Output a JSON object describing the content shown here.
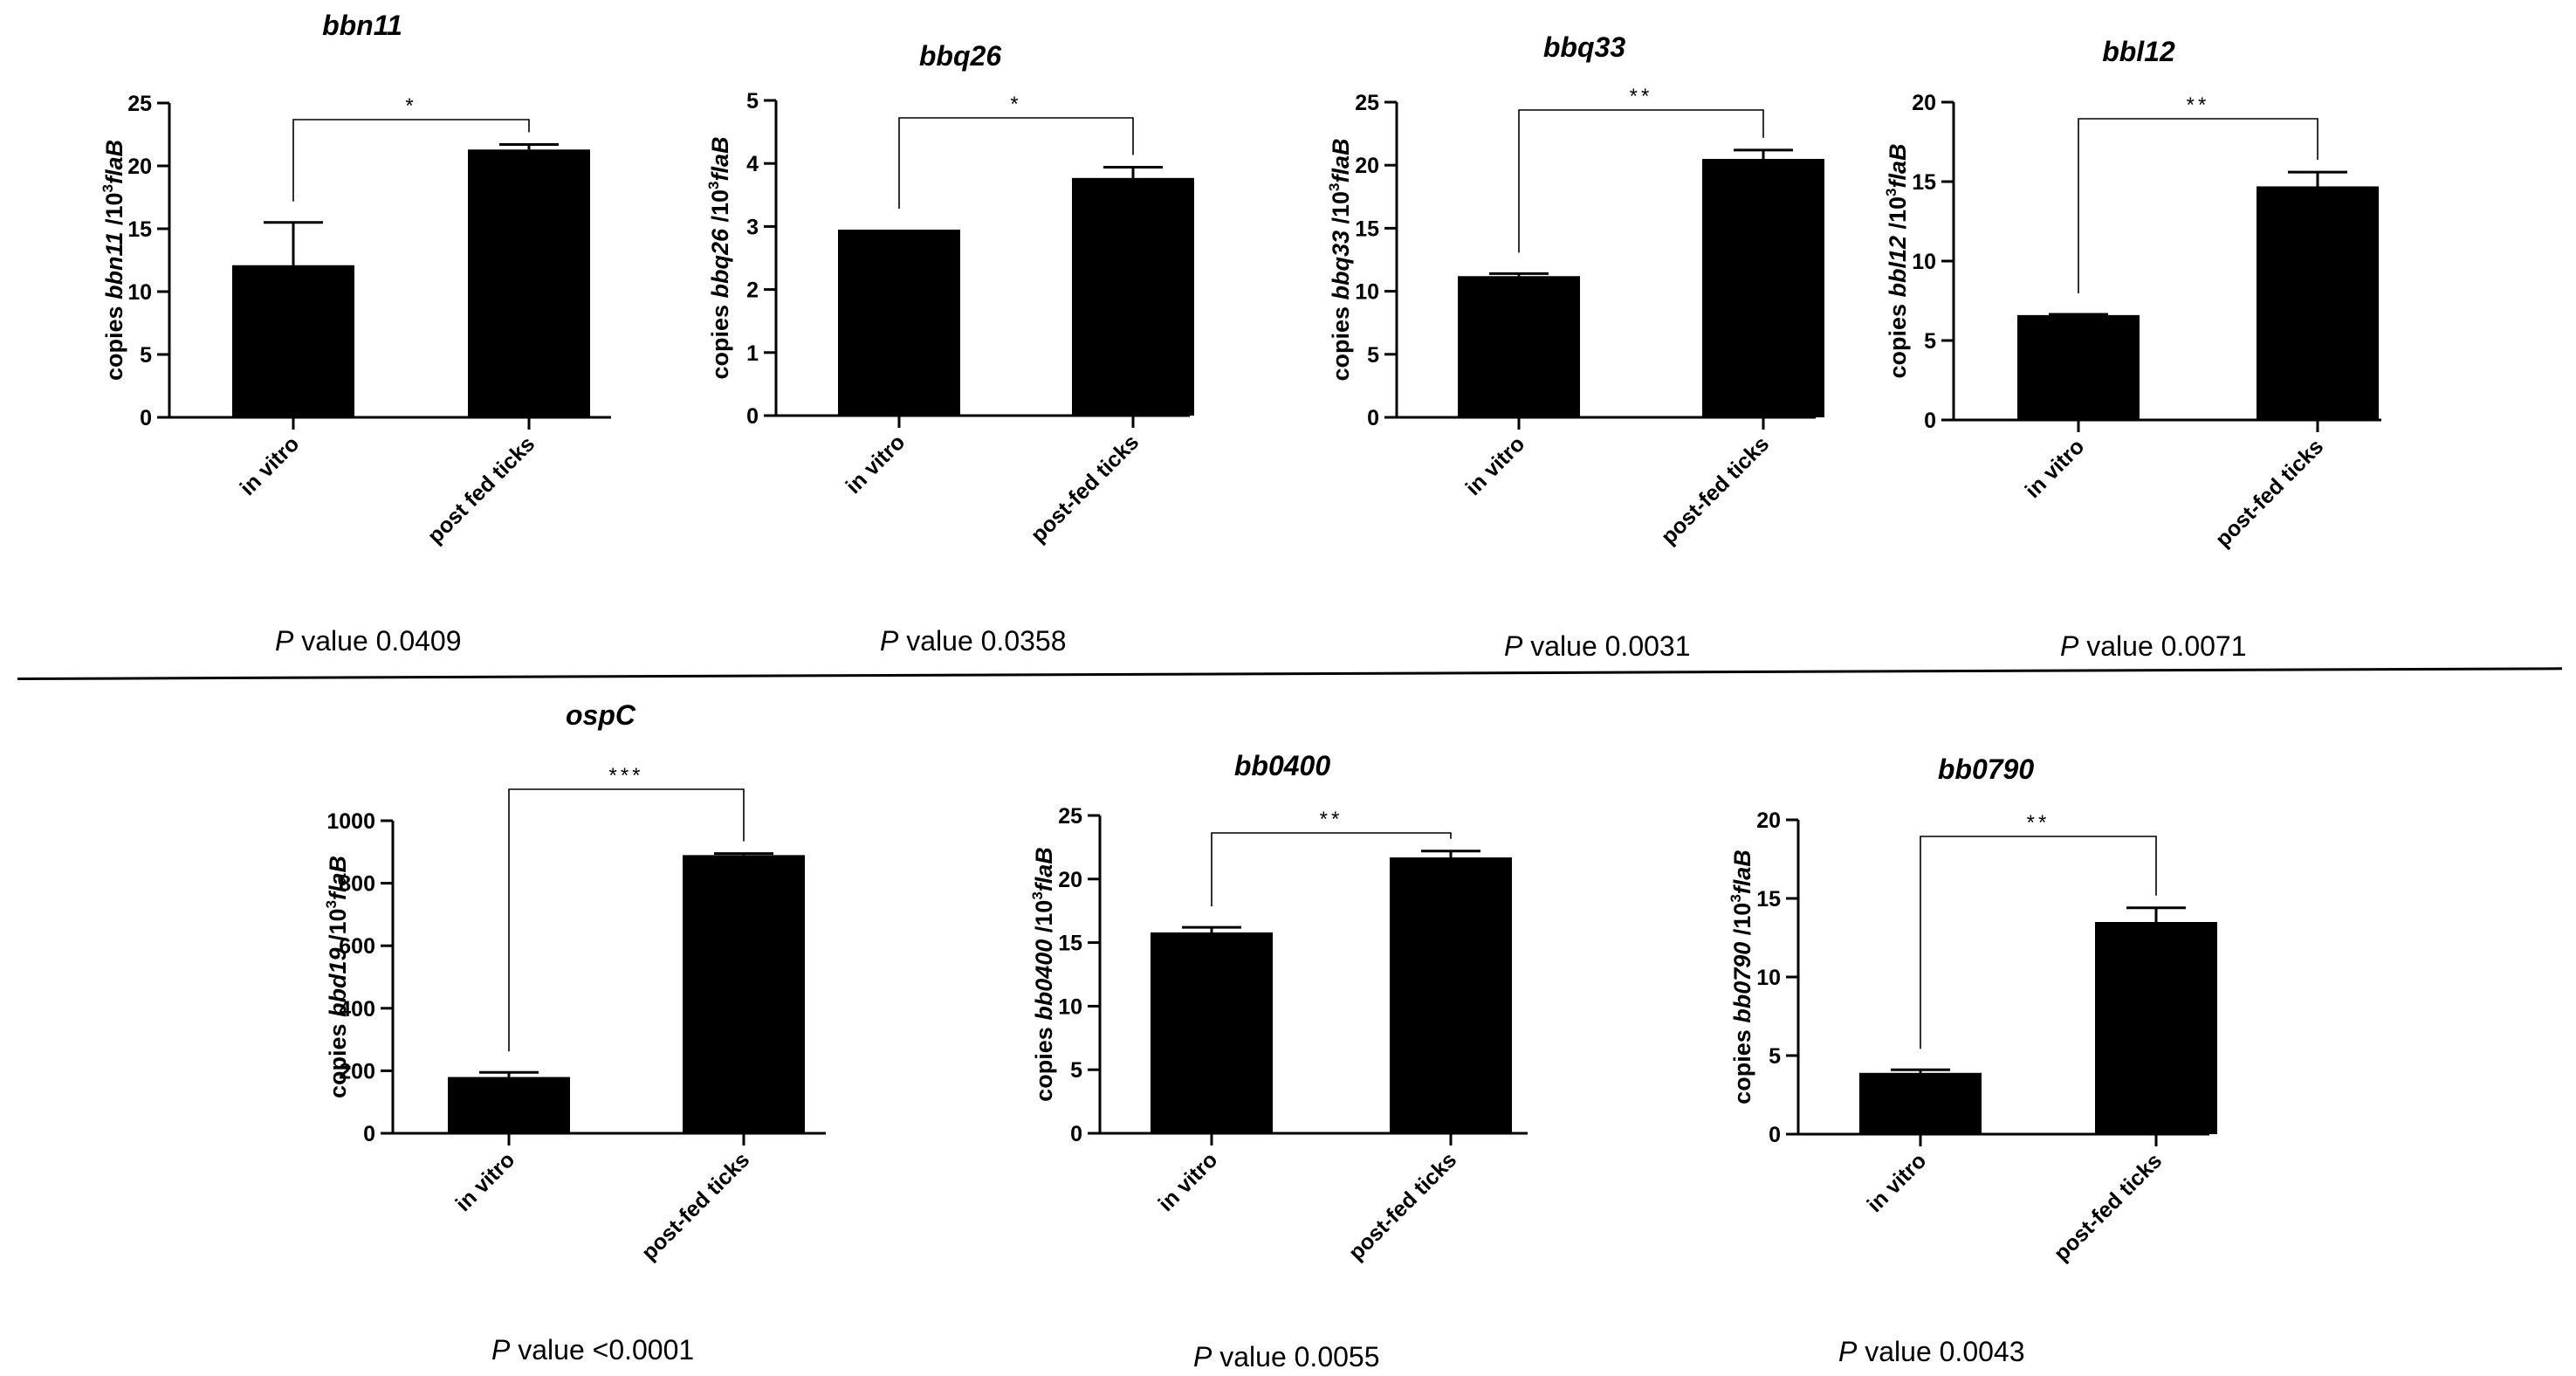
{
  "chart_data": [
    {
      "type": "bar",
      "title": "bbn11",
      "ylabel_prefix": "copies ",
      "gene": "bbn11",
      "ylabel_suffix": " /10",
      "ylabel_exp": "3",
      "ylabel_ref": "flaB",
      "categories": [
        "in vitro",
        "post fed  ticks"
      ],
      "values": [
        12.1,
        21.3
      ],
      "errors": [
        3.4,
        0.4
      ],
      "ylim": [
        0,
        25
      ],
      "yticks": [
        0,
        5,
        10,
        15,
        20,
        25
      ],
      "significance": "*",
      "p_label": "P",
      "p_text": " value 0.0409"
    },
    {
      "type": "bar",
      "title": "bbq26",
      "ylabel_prefix": "copies ",
      "gene": "bbq26",
      "ylabel_suffix": " /10",
      "ylabel_exp": "3",
      "ylabel_ref": "flaB",
      "categories": [
        "in vitro",
        "post-fed  ticks"
      ],
      "values": [
        2.95,
        3.77
      ],
      "errors": [
        0.0,
        0.17
      ],
      "ylim": [
        0,
        5
      ],
      "yticks": [
        0,
        1,
        2,
        3,
        4,
        5
      ],
      "significance": "*",
      "p_label": "P",
      "p_text": " value 0.0358"
    },
    {
      "type": "bar",
      "title": "bbq33",
      "ylabel_prefix": "copies ",
      "gene": "bbq33",
      "ylabel_suffix": " /10",
      "ylabel_exp": "3",
      "ylabel_ref": "flaB",
      "categories": [
        "in vitro",
        "post-fed  ticks"
      ],
      "values": [
        11.2,
        20.5
      ],
      "errors": [
        0.2,
        0.7
      ],
      "ylim": [
        0,
        25
      ],
      "yticks": [
        0,
        5,
        10,
        15,
        20,
        25
      ],
      "significance": "**",
      "p_label": "P",
      "p_text": " value 0.0031"
    },
    {
      "type": "bar",
      "title": "bbl12",
      "ylabel_prefix": "copies ",
      "gene": "bbl12",
      "ylabel_suffix": " /10",
      "ylabel_exp": "3",
      "ylabel_ref": "flaB",
      "categories": [
        "in vitro",
        "post-fed  ticks"
      ],
      "values": [
        6.6,
        14.7
      ],
      "errors": [
        0.05,
        0.9
      ],
      "ylim": [
        0,
        20
      ],
      "yticks": [
        0,
        5,
        10,
        15,
        20
      ],
      "significance": "**",
      "p_label": "P",
      "p_text": " value 0.0071"
    },
    {
      "type": "bar",
      "title": "ospC",
      "ylabel_prefix": "copies ",
      "gene": "bbd19",
      "ylabel_suffix": " /10",
      "ylabel_exp": "3",
      "ylabel_ref": "flaB",
      "categories": [
        "in vitro",
        "post-fed  ticks"
      ],
      "values": [
        180,
        890
      ],
      "errors": [
        15,
        5
      ],
      "ylim": [
        0,
        1000
      ],
      "yticks": [
        0,
        200,
        400,
        600,
        800,
        1000
      ],
      "significance": "***",
      "p_label": "P",
      "p_text": " value <0.0001"
    },
    {
      "type": "bar",
      "title": "bb0400",
      "ylabel_prefix": "copies ",
      "gene": "bb0400",
      "ylabel_suffix": " /10",
      "ylabel_exp": "3",
      "ylabel_ref": "flaB",
      "categories": [
        "in vitro",
        "post-fed  ticks"
      ],
      "values": [
        15.8,
        21.7
      ],
      "errors": [
        0.4,
        0.5
      ],
      "ylim": [
        0,
        25
      ],
      "yticks": [
        0,
        5,
        10,
        15,
        20,
        25
      ],
      "significance": "**",
      "p_label": "P",
      "p_text": " value 0.0055"
    },
    {
      "type": "bar",
      "title": "bb0790",
      "ylabel_prefix": "copies ",
      "gene": "bb0790",
      "ylabel_suffix": " /10",
      "ylabel_exp": "3",
      "ylabel_ref": "flaB",
      "categories": [
        "in vitro",
        "post-fed  ticks"
      ],
      "values": [
        3.9,
        13.5
      ],
      "errors": [
        0.2,
        0.9
      ],
      "ylim": [
        0,
        20
      ],
      "yticks": [
        0,
        5,
        10,
        15,
        20
      ],
      "significance": "**",
      "p_label": "P",
      "p_text": " value 0.0043"
    }
  ]
}
